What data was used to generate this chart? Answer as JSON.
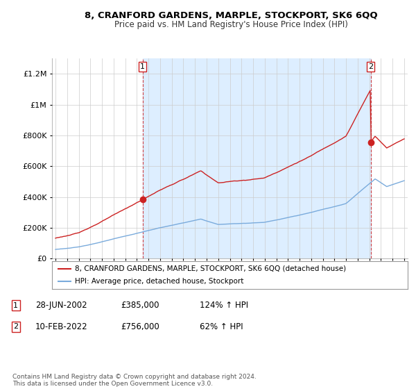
{
  "title": "8, CRANFORD GARDENS, MARPLE, STOCKPORT, SK6 6QQ",
  "subtitle": "Price paid vs. HM Land Registry's House Price Index (HPI)",
  "ylim": [
    0,
    1300000
  ],
  "xlim_start": 1994.7,
  "xlim_end": 2025.3,
  "yticks": [
    0,
    200000,
    400000,
    600000,
    800000,
    1000000,
    1200000
  ],
  "ytick_labels": [
    "£0",
    "£200K",
    "£400K",
    "£600K",
    "£800K",
    "£1M",
    "£1.2M"
  ],
  "xticks": [
    1995,
    1996,
    1997,
    1998,
    1999,
    2000,
    2001,
    2002,
    2003,
    2004,
    2005,
    2006,
    2007,
    2008,
    2009,
    2010,
    2011,
    2012,
    2013,
    2014,
    2015,
    2016,
    2017,
    2018,
    2019,
    2020,
    2021,
    2022,
    2023,
    2024,
    2025
  ],
  "hpi_color": "#7aabdc",
  "price_color": "#cc2222",
  "marker_color": "#cc2222",
  "sale1_x": 2002.49,
  "sale1_y": 385000,
  "sale1_label": "1",
  "sale2_x": 2022.12,
  "sale2_y": 756000,
  "sale2_label": "2",
  "shade_color": "#ddeeff",
  "legend_label_price": "8, CRANFORD GARDENS, MARPLE, STOCKPORT, SK6 6QQ (detached house)",
  "legend_label_hpi": "HPI: Average price, detached house, Stockport",
  "copyright": "Contains HM Land Registry data © Crown copyright and database right 2024.\nThis data is licensed under the Open Government Licence v3.0.",
  "background_color": "#ffffff",
  "grid_color": "#cccccc"
}
